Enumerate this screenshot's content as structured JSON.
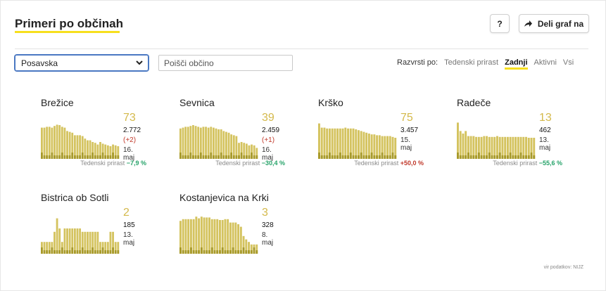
{
  "header": {
    "title": "Primeri po občinah",
    "help_label": "?",
    "share_label": "Deli graf na"
  },
  "controls": {
    "region_selected": "Posavska",
    "search_placeholder": "Poišči občino",
    "sort_label": "Razvrsti po:",
    "sort_options": [
      "Tedenski prirast",
      "Zadnji",
      "Aktivni",
      "Vsi"
    ],
    "sort_active": "Zadnji"
  },
  "weekly_label": "Tedenski prirast",
  "colors": {
    "accent": "#f7df1e",
    "bar_light": "#d4c35f",
    "bar_dark": "#a89a2a",
    "negative": "#27a36a",
    "positive": "#c0392b"
  },
  "municipalities": [
    {
      "name": "Brežice",
      "latest": "73",
      "total": "2.772",
      "delta": "(+2)",
      "date": "16. maj",
      "weekly": "−7,9 %",
      "bars": [
        0.74,
        0.74,
        0.76,
        0.76,
        0.74,
        0.78,
        0.81,
        0.8,
        0.76,
        0.74,
        0.66,
        0.64,
        0.62,
        0.56,
        0.56,
        0.56,
        0.54,
        0.48,
        0.44,
        0.44,
        0.4,
        0.38,
        0.34,
        0.4,
        0.36,
        0.34,
        0.32,
        0.3,
        0.34,
        0.32,
        0.3
      ]
    },
    {
      "name": "Sevnica",
      "latest": "39",
      "total": "2.459",
      "delta": "(+1)",
      "date": "16. maj",
      "weekly": "−30,4 %",
      "bars": [
        0.72,
        0.74,
        0.76,
        0.76,
        0.78,
        0.8,
        0.78,
        0.76,
        0.74,
        0.76,
        0.76,
        0.74,
        0.76,
        0.74,
        0.72,
        0.7,
        0.7,
        0.66,
        0.64,
        0.62,
        0.58,
        0.56,
        0.54,
        0.38,
        0.4,
        0.38,
        0.36,
        0.32,
        0.34,
        0.32,
        0.26
      ]
    },
    {
      "name": "Krško",
      "latest": "75",
      "total": "3.457",
      "delta": "",
      "date": "15. maj",
      "weekly": "+50,0 %",
      "bars": [
        0.84,
        0.74,
        0.74,
        0.72,
        0.72,
        0.72,
        0.72,
        0.72,
        0.72,
        0.72,
        0.74,
        0.72,
        0.72,
        0.72,
        0.7,
        0.68,
        0.66,
        0.64,
        0.62,
        0.6,
        0.58,
        0.58,
        0.56,
        0.56,
        0.54,
        0.54,
        0.54,
        0.54,
        0.52,
        0.5
      ]
    },
    {
      "name": "Radeče",
      "latest": "13",
      "total": "462",
      "delta": "",
      "date": "13. maj",
      "weekly": "−55,6 %",
      "bars": [
        0.86,
        0.66,
        0.6,
        0.66,
        0.54,
        0.54,
        0.54,
        0.52,
        0.52,
        0.52,
        0.54,
        0.54,
        0.52,
        0.52,
        0.52,
        0.54,
        0.52,
        0.52,
        0.52,
        0.52,
        0.52,
        0.52,
        0.52,
        0.52,
        0.52,
        0.52,
        0.52,
        0.5,
        0.5,
        0.5
      ]
    },
    {
      "name": "Bistrica ob Sotli",
      "latest": "2",
      "total": "185",
      "delta": "",
      "date": "13. maj",
      "weekly": "",
      "bars": [
        0.28,
        0.28,
        0.28,
        0.28,
        0.28,
        0.52,
        0.84,
        0.6,
        0.28,
        0.6,
        0.6,
        0.6,
        0.6,
        0.6,
        0.6,
        0.6,
        0.52,
        0.52,
        0.52,
        0.52,
        0.52,
        0.52,
        0.52,
        0.28,
        0.28,
        0.28,
        0.28,
        0.52,
        0.52,
        0.28,
        0.28
      ]
    },
    {
      "name": "Kostanjevica na Krki",
      "latest": "3",
      "total": "328",
      "delta": "",
      "date": "8. maj",
      "weekly": "",
      "bars": [
        0.78,
        0.82,
        0.82,
        0.82,
        0.82,
        0.82,
        0.88,
        0.84,
        0.88,
        0.86,
        0.86,
        0.86,
        0.82,
        0.82,
        0.82,
        0.8,
        0.8,
        0.82,
        0.82,
        0.74,
        0.74,
        0.74,
        0.7,
        0.64,
        0.42,
        0.34,
        0.28,
        0.22,
        0.22,
        0.22
      ]
    }
  ],
  "source_note": "vir podatkov: NIJZ"
}
